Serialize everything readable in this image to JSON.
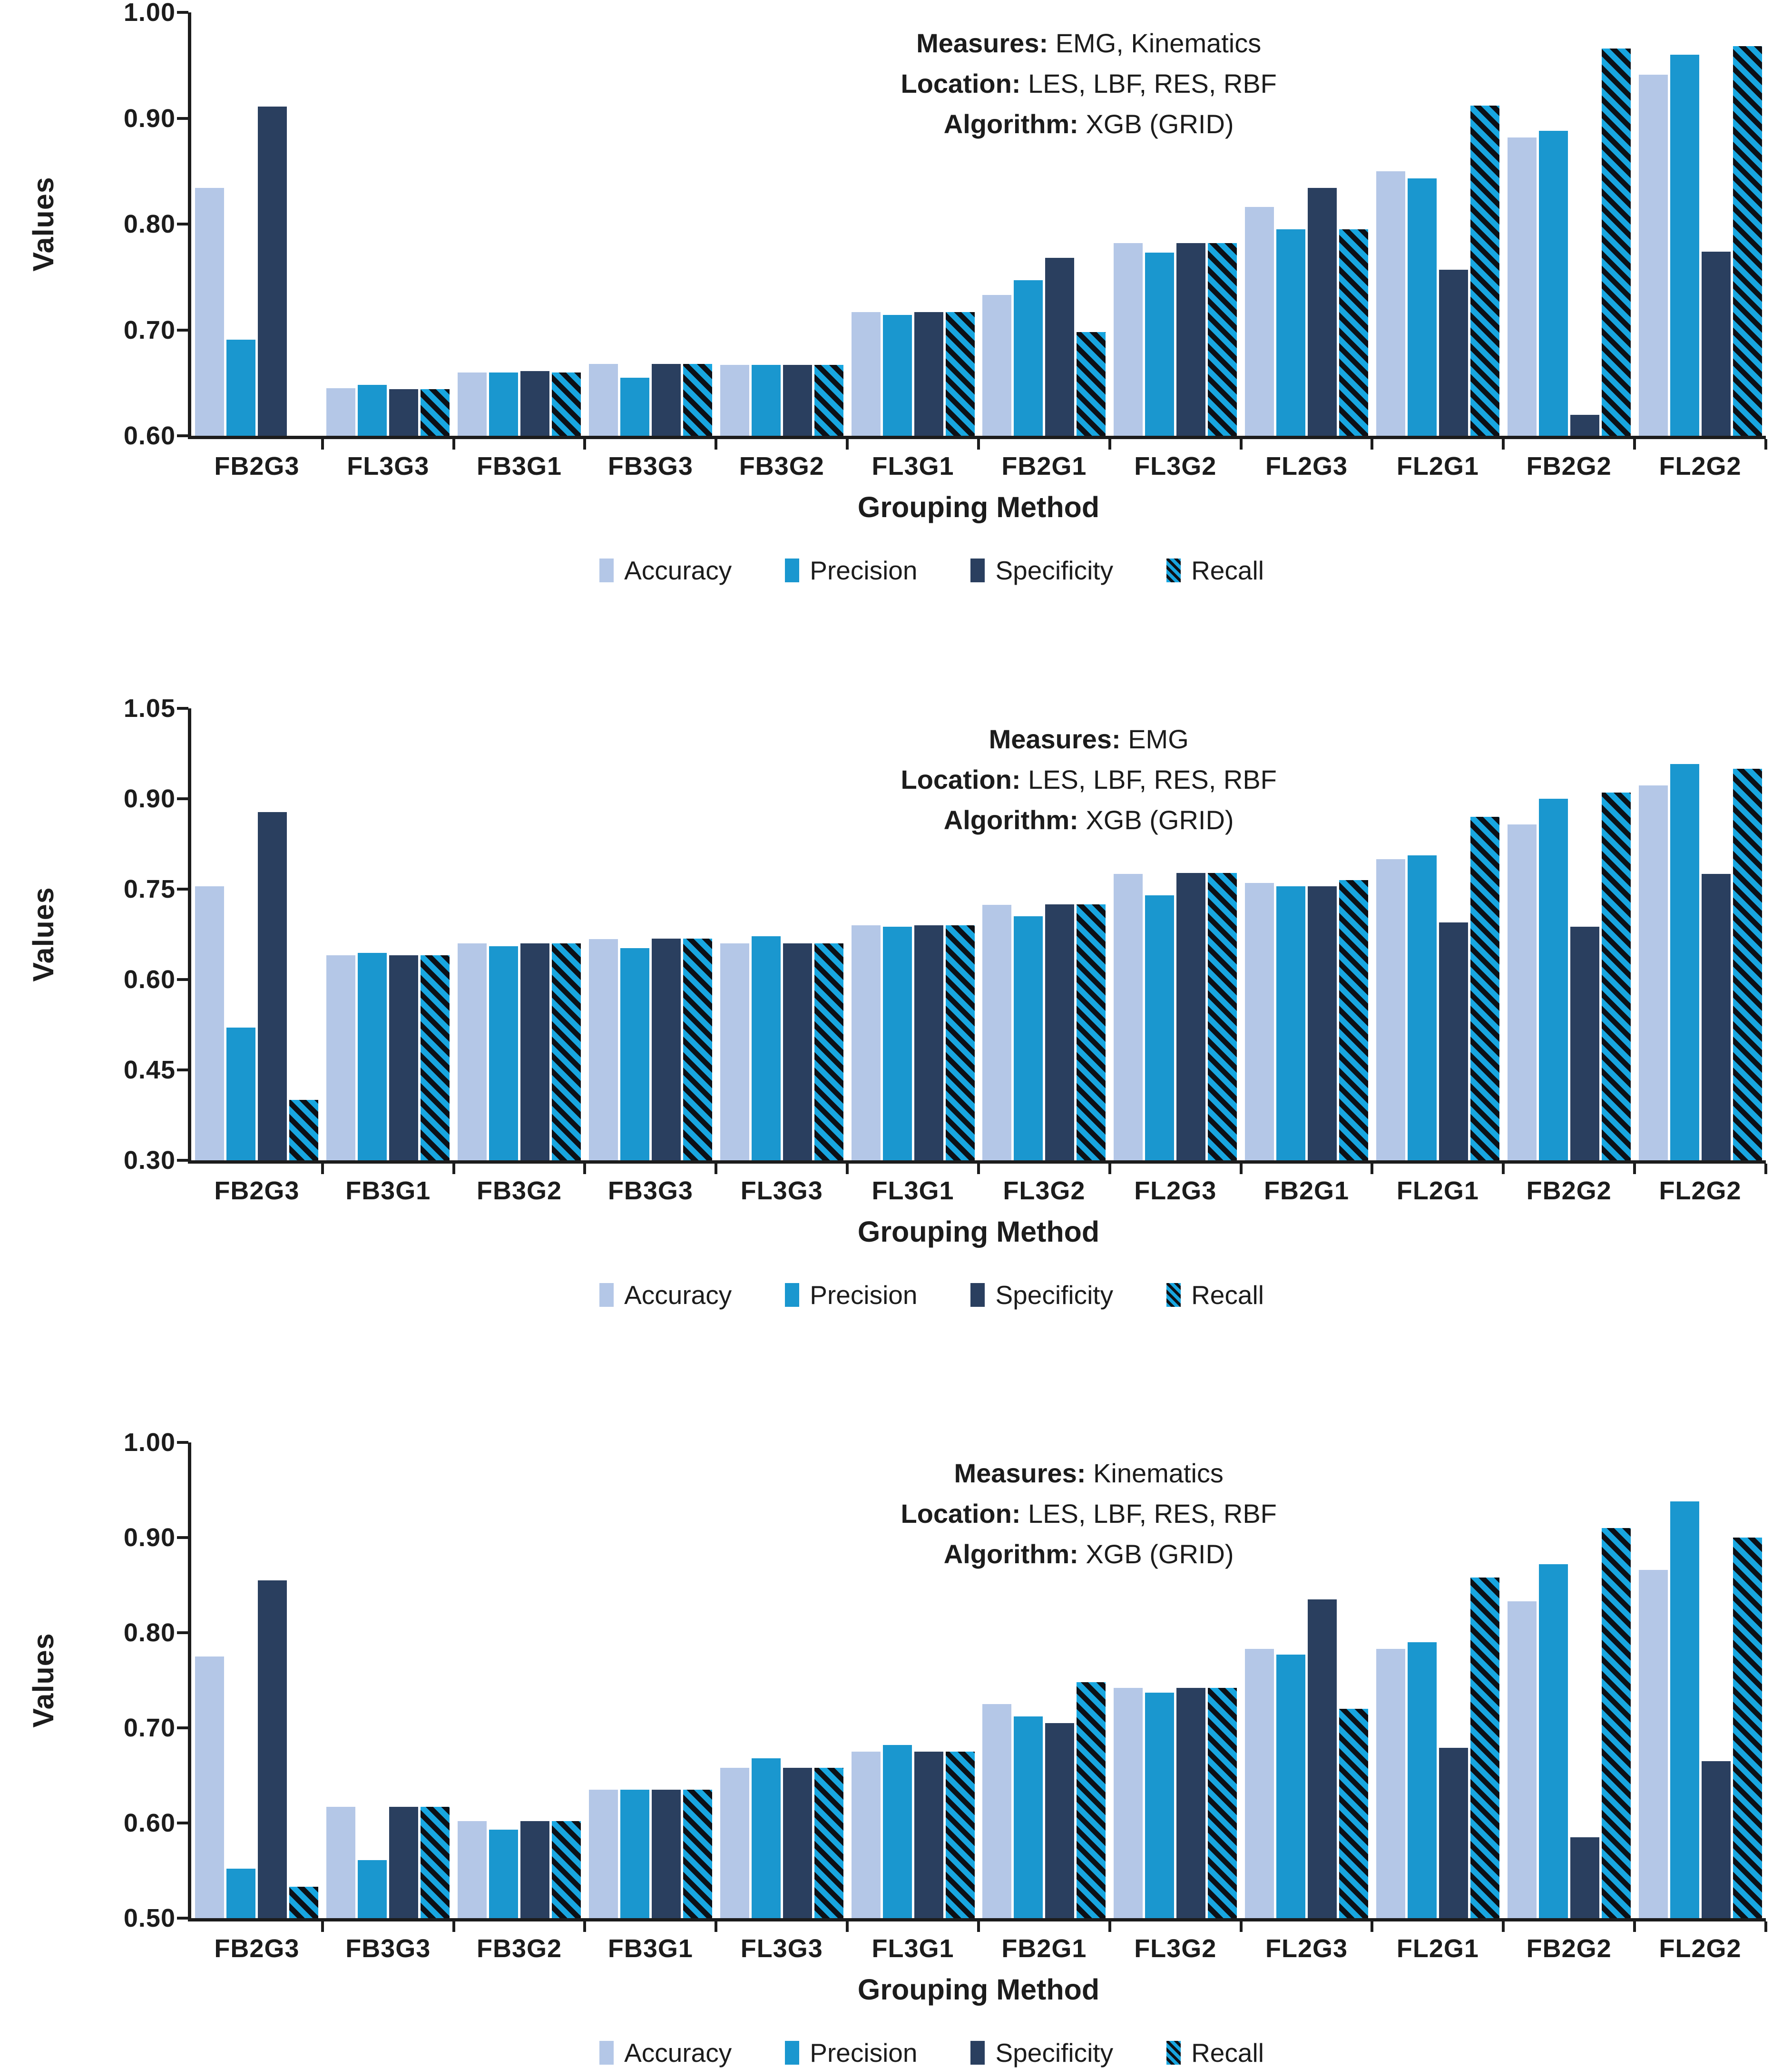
{
  "page": {
    "background": "#ffffff",
    "text_color": "#1c1c1c"
  },
  "legend": {
    "position": "bottom",
    "items": [
      {
        "key": "accuracy",
        "label": "Accuracy",
        "color": "#b4c7e7",
        "pattern": "solid"
      },
      {
        "key": "precision",
        "label": "Precision",
        "color": "#1a97cf",
        "pattern": "solid"
      },
      {
        "key": "specificity",
        "label": "Specificity",
        "color": "#2a3f5f",
        "pattern": "solid"
      },
      {
        "key": "recall",
        "label": "Recall",
        "color": "#18a6e0",
        "pattern": "diagonal-stripes",
        "stripe_color": "#0c1016"
      }
    ]
  },
  "chart_data": [
    {
      "type": "bar",
      "annotation": {
        "measures_label": "Measures:",
        "measures": "EMG, Kinematics",
        "location_label": "Location:",
        "location": "LES, LBF, RES, RBF",
        "algorithm_label": "Algorithm:",
        "algorithm": "XGB (GRID)"
      },
      "ylabel": "Values",
      "xlabel": "Grouping Method",
      "ymin": 0.6,
      "ymax": 1.0,
      "ylim": [
        0.6,
        1.0
      ],
      "grid": false,
      "ytick_labels": [
        "1.00",
        "0.90",
        "0.80",
        "0.70",
        "0.60"
      ],
      "categories": [
        "FB2G3",
        "FL3G3",
        "FB3G1",
        "FB3G3",
        "FB3G2",
        "FL3G1",
        "FB2G1",
        "FL3G2",
        "FL2G3",
        "FL2G1",
        "FB2G2",
        "FL2G2"
      ],
      "series": [
        {
          "name": "Accuracy",
          "values": [
            0.834,
            0.645,
            0.66,
            0.668,
            0.667,
            0.717,
            0.733,
            0.782,
            0.816,
            0.85,
            0.882,
            0.941
          ]
        },
        {
          "name": "Precision",
          "values": [
            0.691,
            0.648,
            0.66,
            0.655,
            0.667,
            0.714,
            0.747,
            0.773,
            0.795,
            0.843,
            0.888,
            0.96
          ]
        },
        {
          "name": "Specificity",
          "values": [
            0.911,
            0.644,
            0.661,
            0.668,
            0.667,
            0.717,
            0.768,
            0.782,
            0.834,
            0.757,
            0.62,
            0.774
          ]
        },
        {
          "name": "Recall",
          "values": [
            null,
            0.644,
            0.66,
            0.668,
            0.667,
            0.717,
            0.698,
            0.782,
            0.795,
            0.912,
            0.966,
            0.968
          ]
        }
      ]
    },
    {
      "type": "bar",
      "annotation": {
        "measures_label": "Measures:",
        "measures": "EMG",
        "location_label": "Location:",
        "location": "LES, LBF, RES, RBF",
        "algorithm_label": "Algorithm:",
        "algorithm": "XGB (GRID)"
      },
      "ylabel": "Values",
      "xlabel": "Grouping Method",
      "ymin": 0.3,
      "ymax": 1.05,
      "ylim": [
        0.3,
        1.05
      ],
      "grid": false,
      "ytick_labels": [
        "1.05",
        "0.90",
        "0.75",
        "0.60",
        "0.45",
        "0.30"
      ],
      "categories": [
        "FB2G3",
        "FB3G1",
        "FB3G2",
        "FB3G3",
        "FL3G3",
        "FL3G1",
        "FL3G2",
        "FL2G3",
        "FB2G1",
        "FL2G1",
        "FB2G2",
        "FL2G2"
      ],
      "series": [
        {
          "name": "Accuracy",
          "values": [
            0.755,
            0.64,
            0.66,
            0.667,
            0.66,
            0.69,
            0.724,
            0.775,
            0.76,
            0.8,
            0.857,
            0.922
          ]
        },
        {
          "name": "Precision",
          "values": [
            0.52,
            0.644,
            0.655,
            0.652,
            0.672,
            0.688,
            0.705,
            0.74,
            0.755,
            0.806,
            0.9,
            0.958
          ]
        },
        {
          "name": "Specificity",
          "values": [
            0.878,
            0.64,
            0.66,
            0.668,
            0.66,
            0.69,
            0.725,
            0.777,
            0.755,
            0.695,
            0.688,
            0.775
          ]
        },
        {
          "name": "Recall",
          "values": [
            0.4,
            0.64,
            0.66,
            0.668,
            0.66,
            0.69,
            0.725,
            0.777,
            0.765,
            0.87,
            0.91,
            0.95
          ]
        }
      ]
    },
    {
      "type": "bar",
      "annotation": {
        "measures_label": "Measures:",
        "measures": "Kinematics",
        "location_label": "Location:",
        "location": "LES, LBF, RES, RBF",
        "algorithm_label": "Algorithm:",
        "algorithm": "XGB (GRID)"
      },
      "ylabel": "Values",
      "xlabel": "Grouping Method",
      "ymin": 0.5,
      "ymax": 1.0,
      "ylim": [
        0.5,
        1.0
      ],
      "grid": false,
      "ytick_labels": [
        "1.00",
        "0.90",
        "0.80",
        "0.70",
        "0.60",
        "0.50"
      ],
      "categories": [
        "FB2G3",
        "FB3G3",
        "FB3G2",
        "FB3G1",
        "FL3G3",
        "FL3G1",
        "FB2G1",
        "FL3G2",
        "FL2G3",
        "FL2G1",
        "FB2G2",
        "FL2G2"
      ],
      "series": [
        {
          "name": "Accuracy",
          "values": [
            0.775,
            0.617,
            0.602,
            0.635,
            0.658,
            0.675,
            0.725,
            0.742,
            0.783,
            0.783,
            0.833,
            0.866
          ]
        },
        {
          "name": "Precision",
          "values": [
            0.552,
            0.561,
            0.593,
            0.635,
            0.668,
            0.682,
            0.712,
            0.737,
            0.777,
            0.79,
            0.872,
            0.938
          ]
        },
        {
          "name": "Specificity",
          "values": [
            0.855,
            0.617,
            0.602,
            0.635,
            0.658,
            0.675,
            0.705,
            0.742,
            0.835,
            0.679,
            0.585,
            0.665
          ]
        },
        {
          "name": "Recall",
          "values": [
            0.533,
            0.617,
            0.602,
            0.635,
            0.658,
            0.675,
            0.748,
            0.742,
            0.72,
            0.858,
            0.91,
            0.9
          ]
        }
      ]
    }
  ]
}
